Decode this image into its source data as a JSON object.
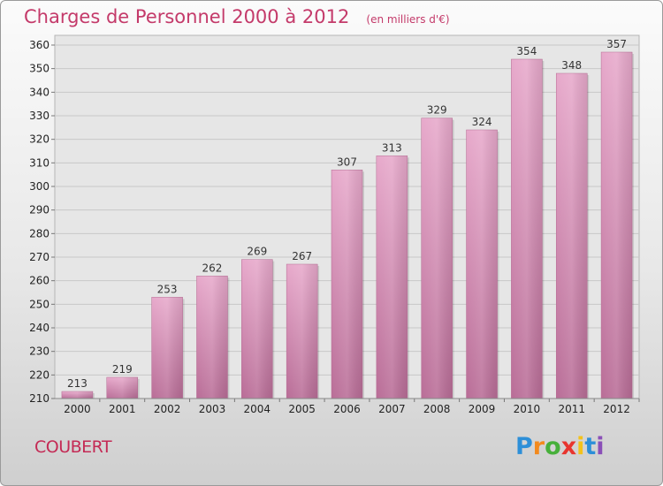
{
  "chart_data": {
    "type": "bar",
    "title": "Charges de Personnel 2000 à 2012",
    "subtitle": "(en milliers d'€)",
    "categories": [
      "2000",
      "2001",
      "2002",
      "2003",
      "2004",
      "2005",
      "2006",
      "2007",
      "2008",
      "2009",
      "2010",
      "2011",
      "2012"
    ],
    "values": [
      213,
      219,
      253,
      262,
      269,
      267,
      307,
      313,
      329,
      324,
      354,
      348,
      357
    ],
    "ylim": [
      210,
      360
    ],
    "yticks": [
      210,
      220,
      230,
      240,
      250,
      260,
      270,
      280,
      290,
      300,
      310,
      320,
      330,
      340,
      350,
      360
    ],
    "grid": true,
    "bar_color": "#d98ab4",
    "data_labels": true
  },
  "footer": {
    "commune": "COUBERT",
    "logo_letters": [
      "P",
      "r",
      "o",
      "x",
      "i",
      "t",
      "i"
    ]
  }
}
